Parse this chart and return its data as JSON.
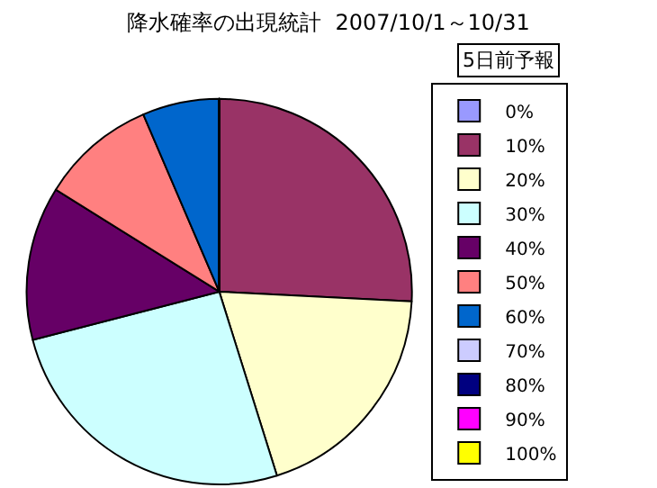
{
  "chart_data": {
    "type": "pie",
    "title": "降水確率の出現統計  2007/10/1～10/31",
    "legend_title": "5日前予報",
    "categories": [
      "0%",
      "10%",
      "20%",
      "30%",
      "40%",
      "50%",
      "60%",
      "70%",
      "80%",
      "90%",
      "100%"
    ],
    "values": [
      0,
      25.81,
      19.35,
      25.81,
      12.9,
      9.68,
      6.45,
      0,
      0,
      0,
      0
    ],
    "colors": [
      "#9999ff",
      "#993366",
      "#ffffcc",
      "#ccffff",
      "#660066",
      "#ff8080",
      "#0066cc",
      "#ccccff",
      "#000080",
      "#ff00ff",
      "#ffff00"
    ],
    "legend": "right"
  }
}
